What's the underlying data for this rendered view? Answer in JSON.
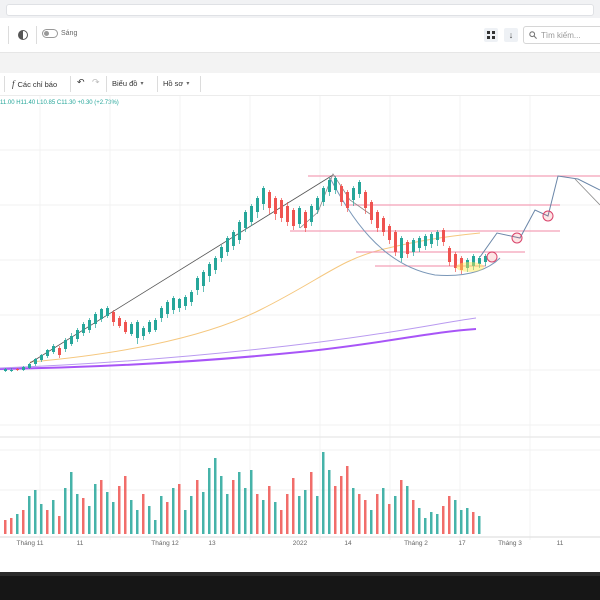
{
  "app_bar": {
    "theme_label": "Sáng",
    "search_placeholder": "Tìm kiếm..."
  },
  "toolbar": {
    "indicators_label": "Các chỉ báo",
    "chart_type_label": "Biểu đồ",
    "profile_label": "Hồ sơ"
  },
  "ohlc": {
    "open": "11.00",
    "high": "H11.40",
    "low": "L10.85",
    "close": "C11.30",
    "change": "+0.30 (+2.73%)"
  },
  "colors": {
    "up": "#26a69a",
    "down": "#ef5350",
    "accent": "#a855f7"
  },
  "chart_data": {
    "type": "candlestick",
    "x_tick_labels": [
      "Tháng 11",
      "11",
      "Tháng 12",
      "13",
      "2022",
      "14",
      "Tháng 2",
      "17",
      "Tháng 3",
      "11"
    ],
    "grid": true,
    "legend": "none",
    "volume_panel": true,
    "overlays": [
      "trendline",
      "curve",
      "horizontal-levels",
      "moving-averages"
    ]
  }
}
